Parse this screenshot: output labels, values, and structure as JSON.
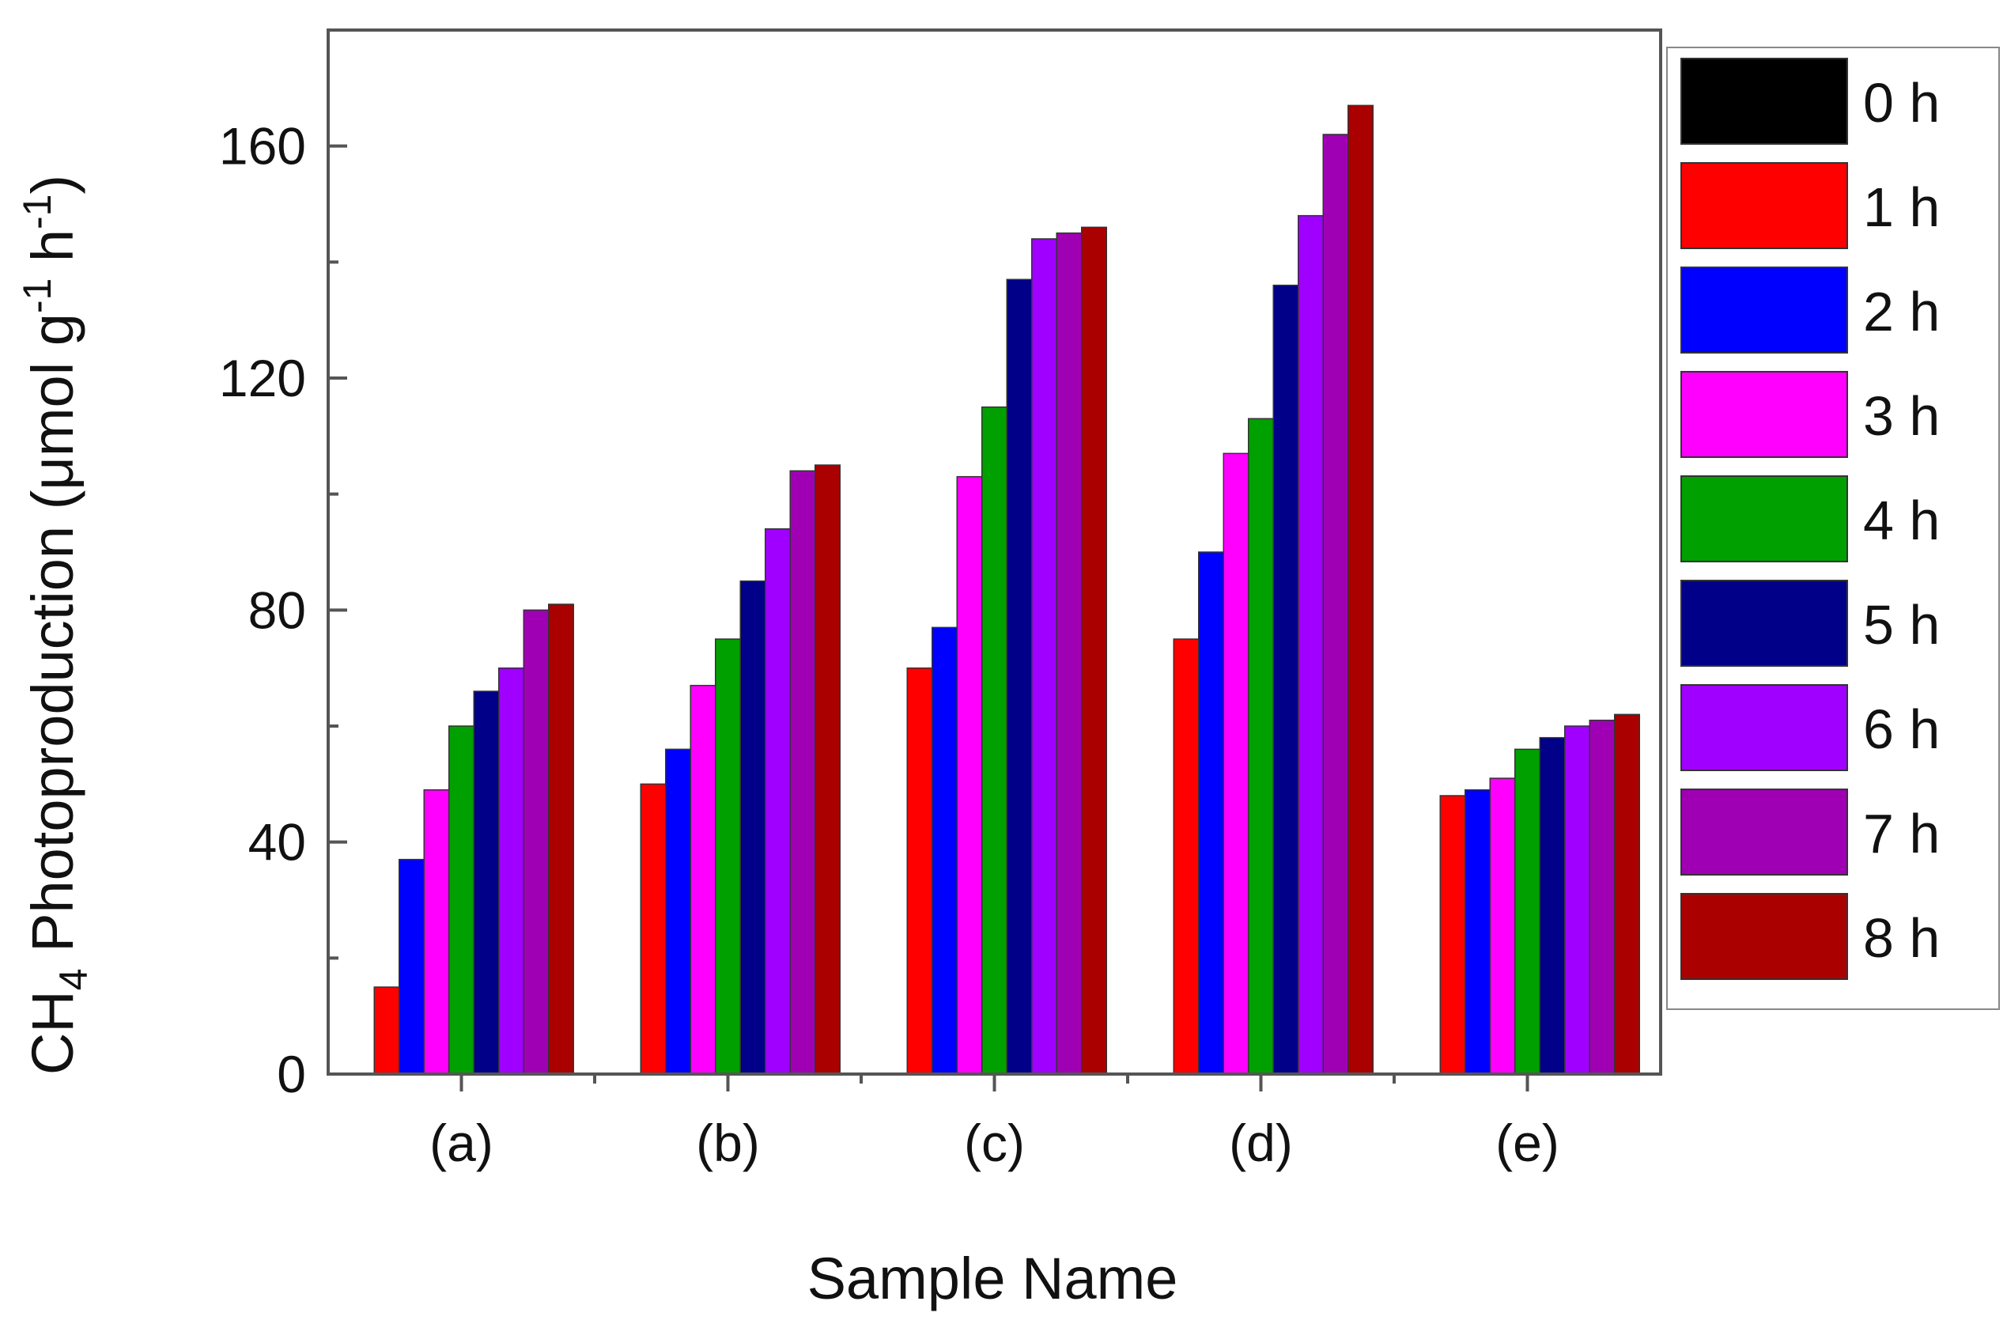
{
  "chart_data": {
    "type": "bar",
    "xlabel": "Sample Name",
    "ylabel": {
      "prefix": "CH",
      "sub": "4",
      "middle": " Photoproduction (μmol g",
      "sup1": "-1",
      "h": " h",
      "sup2": "-1",
      "suffix": ")"
    },
    "ylim": [
      0,
      180
    ],
    "yticks": [
      0,
      40,
      80,
      120,
      160
    ],
    "categories": [
      "(a)",
      "(b)",
      "(c)",
      "(d)",
      "(e)"
    ],
    "legend_position": "right-outside",
    "grid": false,
    "series": [
      {
        "name": "0 h",
        "color": "#000000",
        "values": [
          0,
          0,
          0,
          0,
          0
        ]
      },
      {
        "name": "1 h",
        "color": "#ff0000",
        "values": [
          15,
          50,
          70,
          75,
          48
        ]
      },
      {
        "name": "2 h",
        "color": "#0000ff",
        "values": [
          37,
          56,
          77,
          90,
          49
        ]
      },
      {
        "name": "3 h",
        "color": "#ff00ff",
        "values": [
          49,
          67,
          103,
          107,
          51
        ]
      },
      {
        "name": "4 h",
        "color": "#00a000",
        "values": [
          60,
          75,
          115,
          113,
          56
        ]
      },
      {
        "name": "5 h",
        "color": "#000088",
        "values": [
          66,
          85,
          137,
          136,
          58
        ]
      },
      {
        "name": "6 h",
        "color": "#a000ff",
        "values": [
          70,
          94,
          144,
          148,
          60
        ]
      },
      {
        "name": "7 h",
        "color": "#a000b4",
        "values": [
          80,
          104,
          145,
          162,
          61
        ]
      },
      {
        "name": "8 h",
        "color": "#aa0000",
        "values": [
          81,
          105,
          146,
          167,
          62
        ]
      }
    ]
  }
}
